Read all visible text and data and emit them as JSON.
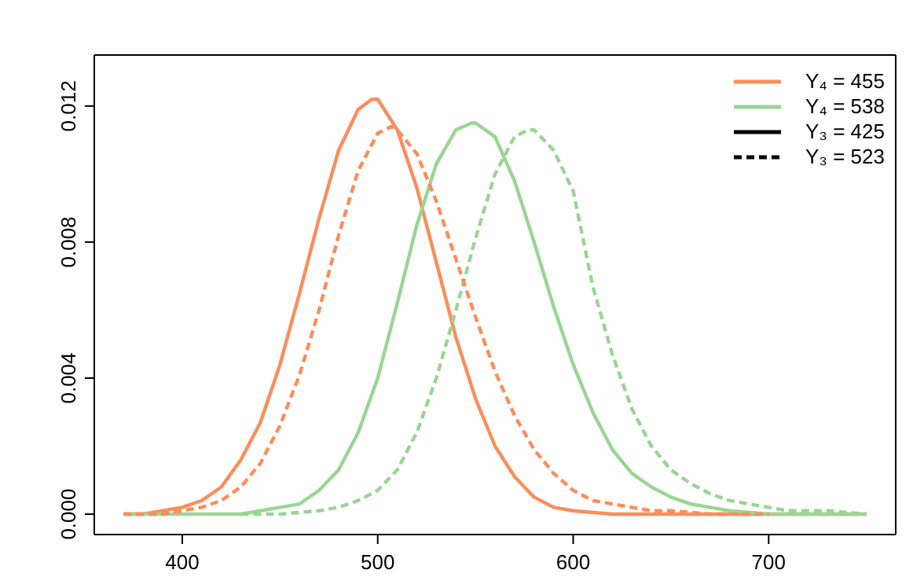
{
  "chart_data": {
    "type": "line",
    "xlim": [
      355,
      765
    ],
    "ylim": [
      -0.0006,
      0.0135
    ],
    "xticks": [
      400,
      500,
      600,
      700
    ],
    "yticks": [
      {
        "value": 0,
        "label": "0.000"
      },
      {
        "value": 0.004,
        "label": "0.004"
      },
      {
        "value": 0.008,
        "label": "0.008"
      },
      {
        "value": 0.012,
        "label": "0.012"
      }
    ],
    "grid": false,
    "legend": "top right",
    "marker": "none",
    "series": [
      {
        "name": "Y₄ = 455",
        "color": "#fc8d59",
        "line_style": "solid",
        "x": [
          370,
          380,
          390,
          400,
          410,
          420,
          430,
          440,
          450,
          460,
          470,
          480,
          490,
          497,
          500,
          510,
          520,
          530,
          540,
          550,
          560,
          570,
          580,
          590,
          600,
          620,
          650,
          700,
          750
        ],
        "values": [
          0,
          0,
          0.0001,
          0.0002,
          0.0004,
          0.0008,
          0.0016,
          0.0027,
          0.0044,
          0.0065,
          0.0087,
          0.0107,
          0.0119,
          0.0122,
          0.0122,
          0.0113,
          0.0096,
          0.0074,
          0.0052,
          0.0034,
          0.002,
          0.0011,
          0.0005,
          0.0002,
          0.0001,
          0,
          0,
          0,
          0
        ]
      },
      {
        "name": "Y₄ = 538",
        "color": "#99d594",
        "line_style": "solid",
        "x": [
          370,
          400,
          430,
          440,
          450,
          460,
          470,
          480,
          490,
          500,
          510,
          520,
          530,
          540,
          548,
          550,
          560,
          570,
          580,
          590,
          600,
          610,
          620,
          630,
          640,
          650,
          660,
          670,
          680,
          700,
          750
        ],
        "values": [
          0,
          0,
          0,
          0.0001,
          0.0002,
          0.0003,
          0.0007,
          0.0013,
          0.0024,
          0.004,
          0.0062,
          0.0085,
          0.0103,
          0.0113,
          0.0115,
          0.0115,
          0.0111,
          0.0098,
          0.008,
          0.0061,
          0.0044,
          0.003,
          0.0019,
          0.0012,
          0.0008,
          0.0005,
          0.0003,
          0.0002,
          0.0001,
          0,
          0
        ]
      },
      {
        "color": "#99d594",
        "line_style": "dashed",
        "x": [
          430,
          450,
          470,
          480,
          490,
          500,
          510,
          520,
          530,
          540,
          550,
          560,
          570,
          577,
          580,
          590,
          600,
          610,
          620,
          630,
          640,
          650,
          660,
          670,
          680,
          690,
          700,
          710,
          730,
          750
        ],
        "values": [
          0,
          0,
          0.0001,
          0.0002,
          0.0004,
          0.0007,
          0.0013,
          0.0024,
          0.004,
          0.006,
          0.0081,
          0.01,
          0.0111,
          0.0113,
          0.0113,
          0.0107,
          0.0095,
          0.0067,
          0.0047,
          0.0031,
          0.002,
          0.0013,
          0.0009,
          0.0006,
          0.0004,
          0.0003,
          0.0002,
          0.0001,
          0.0001,
          0
        ]
      },
      {
        "color": "#fc8d59",
        "line_style": "dashed",
        "x": [
          370,
          390,
          400,
          410,
          420,
          430,
          440,
          450,
          460,
          470,
          480,
          490,
          500,
          507,
          510,
          520,
          530,
          540,
          550,
          560,
          570,
          580,
          590,
          600,
          610,
          620,
          630,
          640,
          650,
          670,
          700
        ],
        "values": [
          0,
          0,
          0.0001,
          0.0002,
          0.0004,
          0.0008,
          0.0015,
          0.0026,
          0.0041,
          0.006,
          0.0082,
          0.0101,
          0.0112,
          0.0114,
          0.0113,
          0.0106,
          0.0092,
          0.0075,
          0.0058,
          0.0042,
          0.0029,
          0.0019,
          0.0012,
          0.0007,
          0.0004,
          0.0003,
          0.0002,
          0.0001,
          0.0001,
          0,
          0
        ]
      },
      {
        "name": "Y₃ = 425",
        "color": "#000000",
        "line_style": "solid"
      },
      {
        "name": "Y₃ = 523",
        "color": "#000000",
        "line_style": "dashed"
      }
    ]
  }
}
